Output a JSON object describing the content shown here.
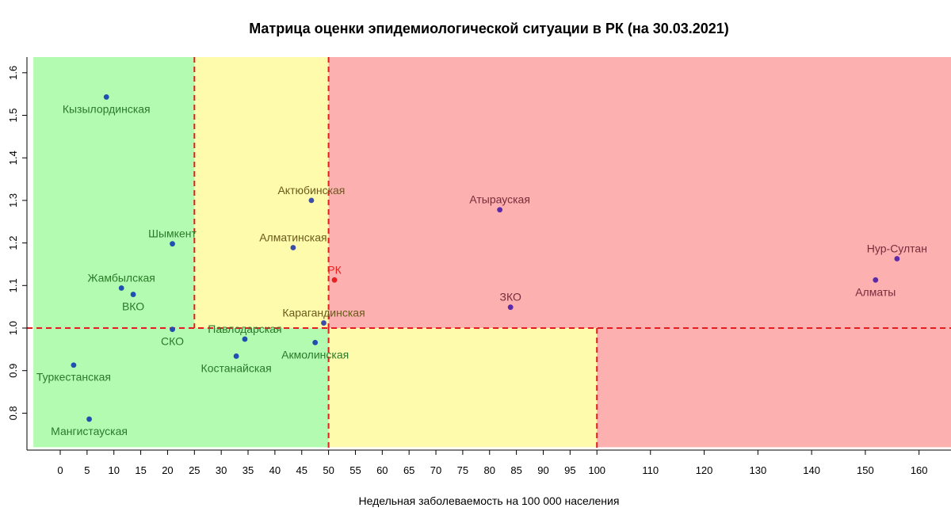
{
  "chart_data": {
    "type": "scatter",
    "title": "Матрица оценки эпидемиологической ситуации в РК (на 30.03.2021)",
    "xlabel": "Недельная заболеваемость на 100 000 населения",
    "ylabel": "",
    "x_ticks": [
      0,
      5,
      10,
      15,
      20,
      25,
      30,
      35,
      40,
      45,
      50,
      55,
      60,
      65,
      70,
      75,
      80,
      85,
      90,
      95,
      100,
      110,
      120,
      130,
      140,
      150,
      160
    ],
    "y_ticks": [
      "0.8",
      "0.9",
      "1.0",
      "1.1",
      "1.2",
      "1.3",
      "1.4",
      "1.5",
      "1.6"
    ],
    "x_scale": "piecewise: 0–100 step 5, 100–160 step 10 (compressed)",
    "ylim": [
      0.72,
      1.64
    ],
    "zones": [
      {
        "x_from": -5,
        "x_to": 25,
        "y_from": 1.0,
        "y_to": 1.64,
        "color": "#b3fbb0"
      },
      {
        "x_from": 25,
        "x_to": 50,
        "y_from": 1.0,
        "y_to": 1.64,
        "color": "#fefcac"
      },
      {
        "x_from": 50,
        "x_to": 166,
        "y_from": 1.0,
        "y_to": 1.64,
        "color": "#fdb0b0"
      },
      {
        "x_from": -5,
        "x_to": 50,
        "y_from": 0.72,
        "y_to": 1.0,
        "color": "#b3fbb0"
      },
      {
        "x_from": 50,
        "x_to": 100,
        "y_from": 0.72,
        "y_to": 1.0,
        "color": "#fefcac"
      },
      {
        "x_from": 100,
        "x_to": 166,
        "y_from": 0.72,
        "y_to": 1.0,
        "color": "#fdb0b0"
      }
    ],
    "thresholds": {
      "h": 1.0,
      "v_upper": [
        25,
        50
      ],
      "v_lower": [
        50,
        100
      ],
      "color": "#e02020"
    },
    "points": [
      {
        "label": "Кызылординская",
        "x": 8.6,
        "y": 1.543,
        "pos": "below",
        "color": "#1f4fb0",
        "text_color": "#2a7a2a"
      },
      {
        "label": "Актюбинская",
        "x": 46.8,
        "y": 1.3,
        "pos": "above",
        "color": "#3c4fa8",
        "text_color": "#6a5a1a"
      },
      {
        "label": "Атырауская",
        "x": 81.9,
        "y": 1.278,
        "pos": "above",
        "color": "#5a2aa8",
        "text_color": "#7a2a3a"
      },
      {
        "label": "Шымкент",
        "x": 20.9,
        "y": 1.198,
        "pos": "above",
        "color": "#1f4fb0",
        "text_color": "#2a7a2a"
      },
      {
        "label": "Алматинская",
        "x": 43.4,
        "y": 1.189,
        "pos": "above",
        "color": "#3c4fa8",
        "text_color": "#6a5a1a"
      },
      {
        "label": "Нур-Султан",
        "x": 155.9,
        "y": 1.163,
        "pos": "above",
        "color": "#5a2aa8",
        "text_color": "#7a2a3a"
      },
      {
        "label": "РК",
        "x": 51.1,
        "y": 1.113,
        "pos": "above",
        "color": "#e82020",
        "text_color": "#e82020"
      },
      {
        "label": "Алматы",
        "x": 151.9,
        "y": 1.113,
        "pos": "below",
        "color": "#5a2aa8",
        "text_color": "#7a2a3a"
      },
      {
        "label": "Жамбылская",
        "x": 11.4,
        "y": 1.094,
        "pos": "above",
        "color": "#1f4fb0",
        "text_color": "#2a7a2a"
      },
      {
        "label": "ВКО",
        "x": 13.6,
        "y": 1.079,
        "pos": "below",
        "color": "#1f4fb0",
        "text_color": "#2a7a2a"
      },
      {
        "label": "ЗКО",
        "x": 83.9,
        "y": 1.049,
        "pos": "above",
        "color": "#5a2aa8",
        "text_color": "#7a2a3a"
      },
      {
        "label": "Карагандинская",
        "x": 49.1,
        "y": 1.012,
        "pos": "above",
        "color": "#3c4fa8",
        "text_color": "#6a5a1a"
      },
      {
        "label": "СКО",
        "x": 20.9,
        "y": 0.997,
        "pos": "below",
        "color": "#1f4fb0",
        "text_color": "#2a7a2a"
      },
      {
        "label": "Павлодарская",
        "x": 34.4,
        "y": 0.974,
        "pos": "above",
        "color": "#1f4fb0",
        "text_color": "#2a7a2a"
      },
      {
        "label": "Акмолинская",
        "x": 47.5,
        "y": 0.966,
        "pos": "below",
        "color": "#1f4fb0",
        "text_color": "#2a7a2a"
      },
      {
        "label": "Костанайская",
        "x": 32.8,
        "y": 0.934,
        "pos": "below",
        "color": "#1f4fb0",
        "text_color": "#2a7a2a"
      },
      {
        "label": "Туркестанская",
        "x": 2.5,
        "y": 0.913,
        "pos": "below",
        "color": "#1f4fb0",
        "text_color": "#2a7a2a"
      },
      {
        "label": "Мангистауская",
        "x": 5.4,
        "y": 0.786,
        "pos": "below",
        "color": "#1f4fb0",
        "text_color": "#2a7a2a"
      }
    ]
  }
}
